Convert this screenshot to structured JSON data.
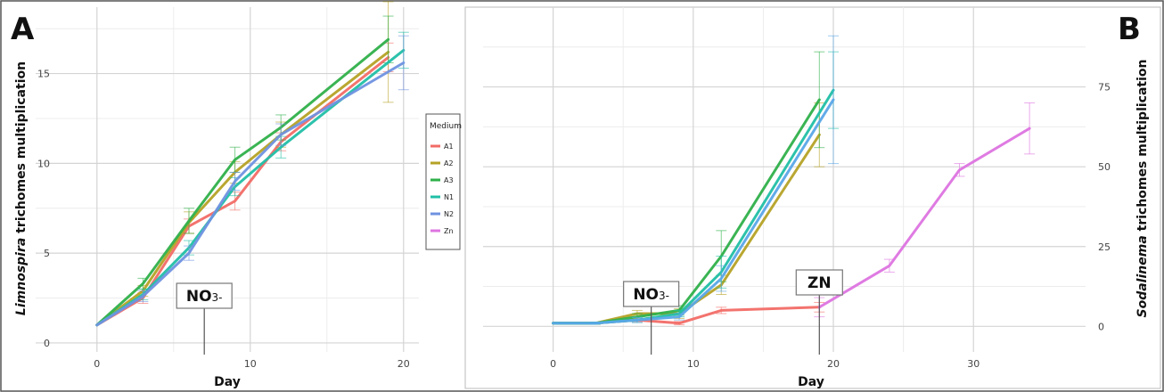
{
  "chart_data": [
    {
      "panel": "A",
      "type": "line",
      "xlabel": "Day",
      "ylabel_italic": "Limnospira",
      "ylabel_rest": " trichomes multiplication",
      "xlim": [
        -4,
        21
      ],
      "ylim": [
        -0.5,
        18.7
      ],
      "xticks": [
        0,
        10,
        20
      ],
      "yticks": [
        0,
        5,
        10,
        15
      ],
      "annotation": {
        "main": "NO",
        "sub": "3-",
        "x": 7
      },
      "series": [
        {
          "name": "A1",
          "color": "#f26b66",
          "x": [
            0,
            3,
            6,
            9,
            12,
            19
          ],
          "y": [
            1.0,
            2.5,
            6.5,
            7.9,
            11.2,
            15.9
          ],
          "err": [
            0,
            0.3,
            0.4,
            0.5,
            0.5,
            0.8
          ]
        },
        {
          "name": "A2",
          "color": "#b5a226",
          "x": [
            0,
            3,
            6,
            9,
            12,
            19
          ],
          "y": [
            1.0,
            2.9,
            6.7,
            9.5,
            11.6,
            16.2
          ],
          "err": [
            0,
            0.3,
            0.6,
            0.6,
            0.7,
            2.8
          ]
        },
        {
          "name": "A3",
          "color": "#2fb04a",
          "x": [
            0,
            3,
            6,
            9,
            12,
            19
          ],
          "y": [
            1.0,
            3.3,
            6.8,
            10.2,
            12.0,
            16.9
          ],
          "err": [
            0,
            0.3,
            0.7,
            0.7,
            0.7,
            1.3
          ]
        },
        {
          "name": "N1",
          "color": "#21bfa6",
          "x": [
            0,
            3,
            6,
            9,
            12,
            20
          ],
          "y": [
            1.0,
            2.7,
            5.3,
            8.7,
            10.9,
            16.3
          ],
          "err": [
            0,
            0.3,
            0.4,
            0.5,
            0.6,
            1.0
          ]
        },
        {
          "name": "N2",
          "color": "#6f92e0",
          "x": [
            0,
            3,
            6,
            9,
            12,
            20
          ],
          "y": [
            1.0,
            2.6,
            5.0,
            9.0,
            11.6,
            15.6
          ],
          "err": [
            0,
            0.3,
            0.4,
            0.5,
            0.6,
            1.5
          ]
        }
      ]
    },
    {
      "panel": "B",
      "type": "line",
      "xlabel": "Day",
      "ylabel_italic": "Sodalinema",
      "ylabel_rest": " trichomes multiplication",
      "xlim": [
        -5,
        38
      ],
      "ylim": [
        -8,
        100
      ],
      "xticks": [
        0,
        10,
        20,
        30
      ],
      "yticks": [
        0,
        25,
        50,
        75
      ],
      "annotations": [
        {
          "main": "NO",
          "sub": "3-",
          "x": 7
        },
        {
          "main": "ZN",
          "sub": "",
          "x": 19
        }
      ],
      "series": [
        {
          "name": "A1",
          "color": "#f26b66",
          "x": [
            0,
            3,
            6,
            9,
            12,
            19
          ],
          "y": [
            1,
            1,
            2,
            1,
            5,
            6
          ],
          "err": [
            0,
            0.3,
            0.5,
            0.5,
            1,
            1.5
          ]
        },
        {
          "name": "A2",
          "color": "#b5a226",
          "x": [
            0,
            3,
            6,
            9,
            12,
            19
          ],
          "y": [
            1,
            1,
            4,
            4,
            13,
            60
          ],
          "err": [
            0,
            0.3,
            1,
            1.5,
            3,
            10
          ]
        },
        {
          "name": "A3",
          "color": "#2fb04a",
          "x": [
            0,
            3,
            6,
            9,
            12,
            19
          ],
          "y": [
            1,
            1,
            3,
            5,
            22,
            71
          ],
          "err": [
            0,
            0.3,
            1,
            1.5,
            8,
            15
          ]
        },
        {
          "name": "N1",
          "color": "#21bfa6",
          "x": [
            0,
            3,
            6,
            9,
            12,
            20
          ],
          "y": [
            1,
            1,
            2,
            4,
            17,
            74
          ],
          "err": [
            0,
            0.3,
            0.8,
            1,
            5,
            12
          ]
        },
        {
          "name": "N2",
          "color": "#5aa7e8",
          "x": [
            0,
            3,
            6,
            9,
            12,
            20
          ],
          "y": [
            1,
            1,
            2,
            3,
            15,
            71
          ],
          "err": [
            0,
            0.3,
            0.8,
            1,
            4,
            20
          ]
        },
        {
          "name": "Zn",
          "color": "#dd74e0",
          "x": [
            19,
            24,
            29,
            34
          ],
          "y": [
            6,
            19,
            49,
            62
          ],
          "err": [
            3,
            2,
            2,
            8
          ]
        }
      ]
    }
  ],
  "legend": {
    "title": "Medium",
    "items": [
      {
        "label": "A1",
        "color": "#f26b66"
      },
      {
        "label": "A2",
        "color": "#b5a226"
      },
      {
        "label": "A3",
        "color": "#2fb04a"
      },
      {
        "label": "N1",
        "color": "#21bfa6"
      },
      {
        "label": "N2",
        "color": "#6f92e0"
      },
      {
        "label": "Zn",
        "color": "#dd74e0"
      }
    ]
  }
}
